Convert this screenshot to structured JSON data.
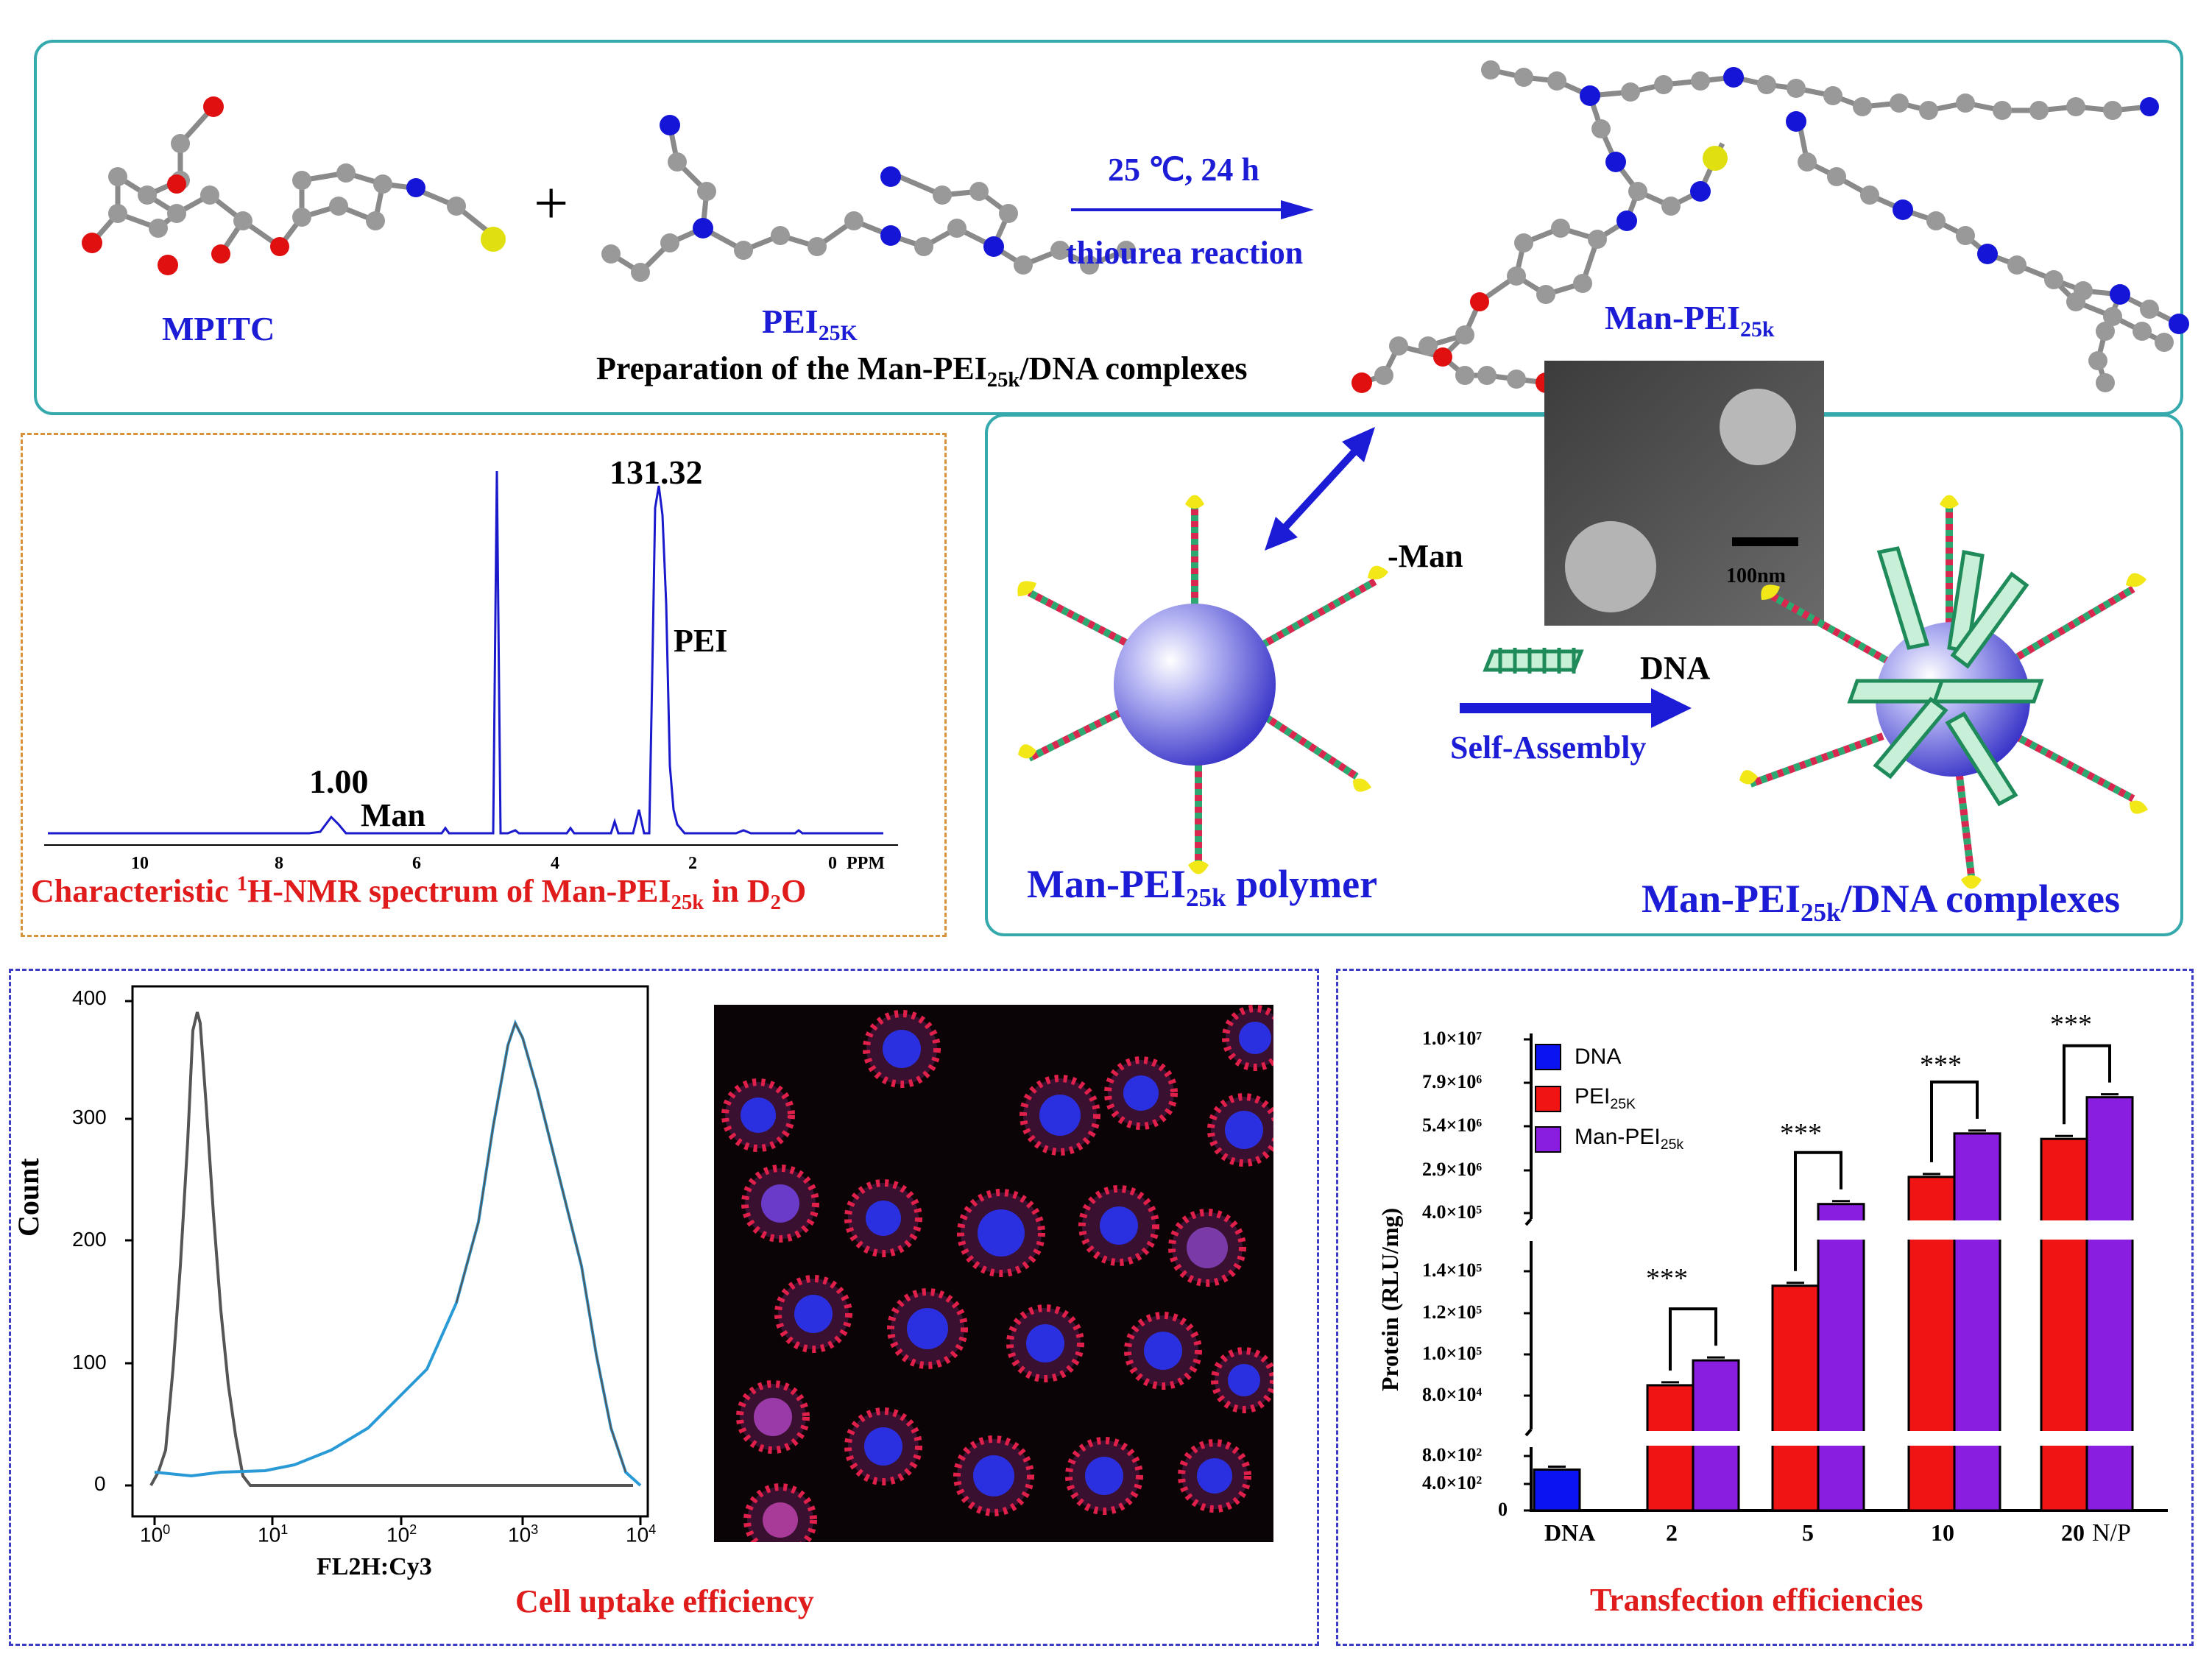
{
  "top_panel": {
    "mpitc_label": "MPITC",
    "plus_sign": "+",
    "pei_label_main": "PEI",
    "pei_label_sub": "25K",
    "arrow_top_label": "25 ℃, 24 h",
    "arrow_bottom_label": "thiourea reaction",
    "product_label_main": "Man-PEI",
    "product_label_sub": "25k",
    "caption_part1": "Preparation of the Man-PEI",
    "caption_sub": "25k",
    "caption_part2": "/DNA complexes"
  },
  "nmr_panel": {
    "peak_main_value": "131.32",
    "peak_main_label": "PEI",
    "peak_small_value": "1.00",
    "peak_small_label": "Man",
    "axis_ticks": [
      "10",
      "8",
      "6",
      "4",
      "2",
      "0"
    ],
    "axis_unit": "PPM",
    "caption_part1": "Characteristic ",
    "caption_sup": "1",
    "caption_part2": "H-NMR spectrum of Man-PEI",
    "caption_sub": "25k",
    "caption_part3": " in D",
    "caption_sub2": "2",
    "caption_part4": "O"
  },
  "assembly_panel": {
    "man_label": "-Man",
    "scale_label": "100nm",
    "dna_label": "DNA",
    "arrow_label": "Self-Assembly",
    "polymer_label_main": "Man-PEI",
    "polymer_label_sub": "25k",
    "polymer_label_tail": " polymer",
    "complex_label_main": "Man-PEI",
    "complex_label_sub": "25k",
    "complex_label_tail": "/DNA complexes"
  },
  "uptake_panel": {
    "y_title": "Count",
    "y_ticks": [
      "0",
      "100",
      "200",
      "300",
      "400"
    ],
    "x_title": "FL2H:Cy3",
    "x_ticks_base": [
      "10",
      "10",
      "10",
      "10",
      "10"
    ],
    "x_ticks_exp": [
      "0",
      "1",
      "2",
      "3",
      "4"
    ],
    "caption": "Cell uptake efficiency"
  },
  "transfection_panel": {
    "caption": "Transfection efficiencies",
    "y_title": "Protein (RLU/mg)",
    "x_axis_end_label": "N/P",
    "significance": "***",
    "legend": [
      {
        "label": "DNA",
        "sub": "",
        "color": "#0a14f0"
      },
      {
        "label": "PEI",
        "sub": "25K",
        "color": "#f01414"
      },
      {
        "label": "Man-PEI",
        "sub": "25k",
        "color": "#8a1ee0"
      }
    ]
  },
  "chart_data": {
    "type": "bar",
    "title": "Transfection efficiencies",
    "xlabel": "N/P",
    "ylabel": "Protein (RLU/mg)",
    "y_scale": "broken axis (three segments)",
    "y_tick_labels": [
      "0",
      "4.0×10²",
      "8.0×10²",
      "8.0×10⁴",
      "1.0×10⁵",
      "1.2×10⁵",
      "1.4×10⁵",
      "4.0×10⁵",
      "2.9×10⁶",
      "5.4×10⁶",
      "7.9×10⁶",
      "1.0×10⁷"
    ],
    "categories": [
      "DNA",
      "2",
      "5",
      "10",
      "20"
    ],
    "series": [
      {
        "name": "DNA",
        "values": [
          600,
          null,
          null,
          null,
          null
        ]
      },
      {
        "name": "PEI25K",
        "values": [
          null,
          85000,
          133000,
          2400000,
          4500000
        ]
      },
      {
        "name": "Man-PEI25k",
        "values": [
          null,
          97000,
          900000,
          4800000,
          6800000
        ]
      }
    ],
    "significance": [
      "",
      "***",
      "***",
      "***",
      "***"
    ]
  }
}
